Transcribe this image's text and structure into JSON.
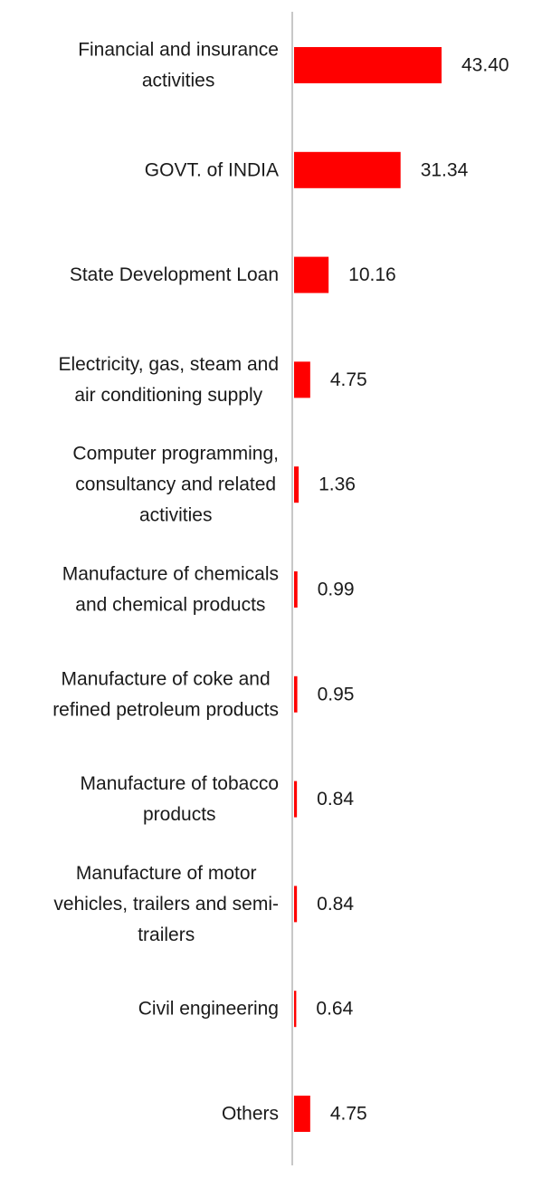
{
  "chart_data": {
    "type": "bar",
    "orientation": "horizontal",
    "title": "",
    "xlabel": "",
    "ylabel": "",
    "grid": false,
    "xlim": [
      0,
      43.4
    ],
    "bar_color": "#ff0000",
    "axis_color": "#c8c8c8",
    "categories": [
      "Financial and insurance activities",
      "GOVT. of INDIA",
      "State Development Loan",
      "Electricity, gas, steam and air conditioning supply",
      "Computer programming, consultancy and related activities",
      "Manufacture of chemicals and chemical products",
      "Manufacture of coke and refined petroleum products",
      "Manufacture of tobacco products",
      "Manufacture of motor vehicles, trailers and semi-trailers",
      "Civil engineering",
      "Others"
    ],
    "category_label_lines": [
      [
        "Financial and insurance",
        "activities"
      ],
      [
        "GOVT. of INDIA"
      ],
      [
        "State Development Loan"
      ],
      [
        "Electricity, gas, steam and",
        "air conditioning supply"
      ],
      [
        "Computer programming,",
        "consultancy and related",
        "activities"
      ],
      [
        "Manufacture of chemicals",
        "and chemical products"
      ],
      [
        "Manufacture of coke and",
        "refined petroleum products"
      ],
      [
        "Manufacture of tobacco",
        "products"
      ],
      [
        "Manufacture of motor",
        "vehicles, trailers and semi-",
        "trailers"
      ],
      [
        "Civil engineering"
      ],
      [
        "Others"
      ]
    ],
    "values": [
      43.4,
      31.34,
      10.16,
      4.75,
      1.36,
      0.99,
      0.95,
      0.84,
      0.84,
      0.64,
      4.75
    ],
    "value_labels": [
      "43.40",
      "31.34",
      "10.16",
      "4.75",
      "1.36",
      "0.99",
      "0.95",
      "0.84",
      "0.84",
      "0.64",
      "4.75"
    ]
  }
}
